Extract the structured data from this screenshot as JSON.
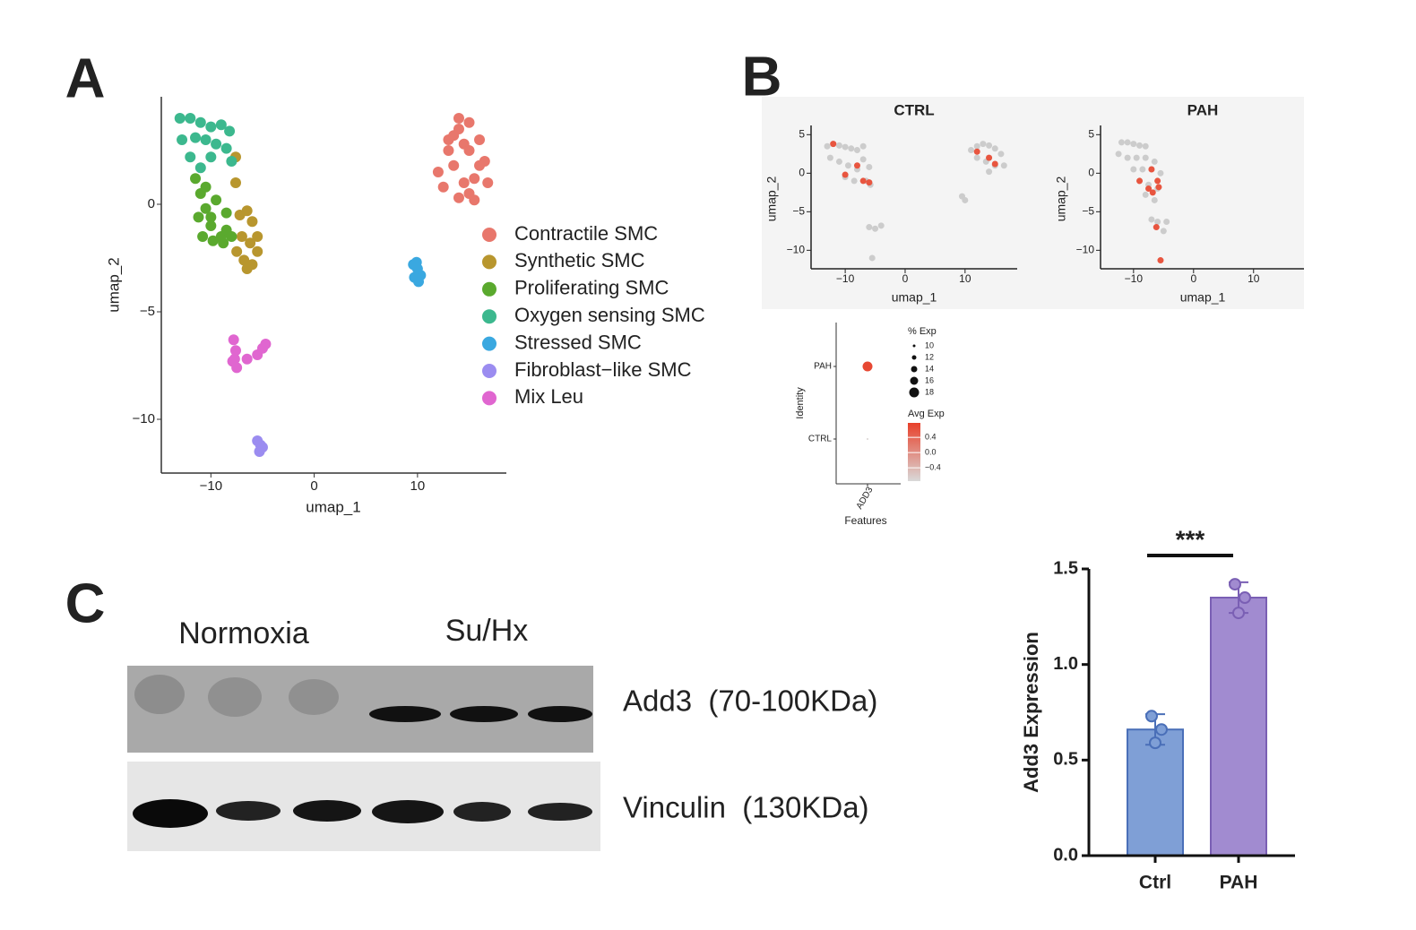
{
  "panel_labels": [
    "A",
    "B",
    "C"
  ],
  "chart_data": [
    {
      "type": "scatter",
      "xlabel": "umap_1",
      "ylabel": "umap_2",
      "xlim": [
        -14.8,
        18.6
      ],
      "ylim": [
        -12.5,
        5
      ],
      "xticks": [
        {
          "value": -10,
          "label": "−10"
        },
        0,
        10
      ],
      "yticks": [
        0,
        {
          "value": -5,
          "label": "−5"
        },
        {
          "value": -10,
          "label": "−10"
        }
      ],
      "legend": "right",
      "series": [
        {
          "name": "Contractile SMC",
          "color": "#e8776c",
          "x": [
            12,
            13,
            14,
            15,
            16,
            12.5,
            13.5,
            14.5,
            15.5,
            16.5,
            13,
            14,
            15,
            16,
            14,
            15,
            14.5,
            13.5,
            15.5,
            16.8
          ],
          "y": [
            1.5,
            2.5,
            3.5,
            3.8,
            3,
            0.8,
            1.8,
            2.8,
            1.2,
            2,
            3,
            0.3,
            0.5,
            1.8,
            4,
            2.5,
            1,
            3.2,
            0.2,
            1
          ]
        },
        {
          "name": "Synthetic SMC",
          "color": "#b8962e",
          "x": [
            -7.2,
            -6.5,
            -6,
            -5.5,
            -7,
            -6.2,
            -5.5,
            -6.8,
            -6,
            -7.5,
            -6.5,
            -7.6,
            -7.6
          ],
          "y": [
            -0.5,
            -0.3,
            -0.8,
            -1.5,
            -1.5,
            -1.8,
            -2.2,
            -2.6,
            -2.8,
            -2.2,
            -3,
            1,
            2.2
          ]
        },
        {
          "name": "Proliferating SMC",
          "color": "#5aa92e",
          "x": [
            -11.5,
            -11,
            -10.5,
            -10,
            -9,
            -8.5,
            -11.2,
            -10.5,
            -9.5,
            -8.5,
            -10.8,
            -9.8,
            -8.8,
            -10,
            -8
          ],
          "y": [
            1.2,
            0.5,
            -0.2,
            -1,
            -1.5,
            -1.2,
            -0.6,
            0.8,
            0.2,
            -0.4,
            -1.5,
            -1.7,
            -1.8,
            -0.6,
            -1.5
          ]
        },
        {
          "name": "Oxygen sensing SMC",
          "color": "#3cb88e",
          "x": [
            -13,
            -12,
            -11,
            -10,
            -9,
            -8.2,
            -12.8,
            -11.5,
            -10.5,
            -9.5,
            -8.5,
            -12,
            -10,
            -8,
            -11
          ],
          "y": [
            4,
            4,
            3.8,
            3.6,
            3.7,
            3.4,
            3,
            3.1,
            3,
            2.8,
            2.6,
            2.2,
            2.2,
            2,
            1.7
          ]
        },
        {
          "name": "Stressed SMC",
          "color": "#3aa8e0",
          "x": [
            9.6,
            10,
            10.3,
            9.7,
            10.1,
            9.9
          ],
          "y": [
            -2.8,
            -3,
            -3.3,
            -3.4,
            -3.6,
            -2.7
          ]
        },
        {
          "name": "Fibroblast−like SMC",
          "color": "#9b8cf0",
          "x": [
            -5.5,
            -5.2,
            -5.3,
            -5
          ],
          "y": [
            -11,
            -11.2,
            -11.5,
            -11.3
          ]
        },
        {
          "name": "Mix Leu",
          "color": "#e066d0",
          "x": [
            -7.8,
            -7.6,
            -7.9,
            -7.5,
            -6.5,
            -5.5,
            -5,
            -4.7,
            -7.7
          ],
          "y": [
            -6.3,
            -6.8,
            -7.3,
            -7.6,
            -7.2,
            -7,
            -6.7,
            -6.5,
            -7.2
          ]
        }
      ]
    },
    {
      "type": "scatter",
      "title": "CTRL",
      "xlabel": "umap_1",
      "ylabel": "umap_2",
      "xlim": [
        -15.7,
        18.7
      ],
      "ylim": [
        -12.4,
        6.2
      ],
      "xticks": [
        {
          "value": -10,
          "label": "−10"
        },
        0,
        10
      ],
      "yticks": [
        5,
        0,
        {
          "value": -5,
          "label": "−5"
        },
        {
          "value": -10,
          "label": "−10"
        }
      ],
      "series": [
        {
          "color": "#cccccc",
          "x": [
            -13,
            -12,
            -11,
            -10,
            -9,
            -8,
            -7,
            -12.5,
            -11,
            -9.5,
            -8,
            -7,
            -6,
            -10,
            -8.5,
            -6.5,
            -5.8,
            11,
            12,
            13,
            14,
            15,
            16,
            12,
            13.5,
            15,
            16.5,
            14,
            9.5,
            10,
            -6,
            -5,
            -4,
            -5.5
          ],
          "y": [
            3.5,
            3.8,
            3.6,
            3.4,
            3.2,
            3,
            3.5,
            2,
            1.5,
            1,
            0.5,
            1.8,
            0.8,
            -0.5,
            -1,
            -1,
            -1.5,
            3,
            3.5,
            3.8,
            3.6,
            3.2,
            2.5,
            2,
            1.5,
            1,
            1,
            0.2,
            -3,
            -3.5,
            -7,
            -7.2,
            -6.8,
            -11
          ]
        },
        {
          "color": "#e8553f",
          "x": [
            -12,
            -8,
            -7,
            -10,
            -6,
            12,
            14,
            15
          ],
          "y": [
            3.8,
            1,
            -1,
            -0.2,
            -1.2,
            2.8,
            2,
            1.2
          ]
        }
      ]
    },
    {
      "type": "scatter",
      "title": "PAH",
      "xlabel": "umap_1",
      "ylabel": "umap_2",
      "xlim": [
        -15.5,
        18.4
      ],
      "ylim": [
        -12.4,
        6.2
      ],
      "xticks": [
        {
          "value": -10,
          "label": "−10"
        },
        0,
        10
      ],
      "yticks": [
        5,
        0,
        {
          "value": -5,
          "label": "−5"
        },
        {
          "value": -10,
          "label": "−10"
        }
      ],
      "series": [
        {
          "color": "#cccccc",
          "x": [
            -12,
            -11,
            -10,
            -9,
            -8,
            -12.5,
            -11,
            -9.5,
            -8,
            -6.5,
            -10,
            -8.5,
            -7,
            -5.5,
            -9,
            -7.5,
            -6,
            -8,
            -6.5,
            -7,
            -6,
            -4.5,
            -5
          ],
          "y": [
            4,
            4,
            3.8,
            3.6,
            3.5,
            2.5,
            2,
            2,
            2,
            1.5,
            0.5,
            0.5,
            0.5,
            0,
            -1,
            -1.5,
            -2,
            -2.8,
            -3.5,
            -6,
            -6.3,
            -6.3,
            -7.5
          ]
        },
        {
          "color": "#e8553f",
          "x": [
            -9,
            -7,
            -6,
            -7.5,
            -6.8,
            -5.8,
            -6.2,
            -5.5
          ],
          "y": [
            -1,
            0.5,
            -1,
            -2,
            -2.5,
            -1.8,
            -7,
            -11.3
          ]
        }
      ]
    },
    {
      "type": "dot",
      "xlabel": "Features",
      "ylabel": "Identity",
      "categories": [
        "ADD3"
      ],
      "identities": [
        "CTRL",
        "PAH"
      ],
      "pct_exp": [
        9,
        18
      ],
      "avg_exp": [
        -0.7,
        0.7
      ],
      "size_title": "% Exp",
      "size_ticks": [
        10,
        12,
        14,
        16,
        18
      ],
      "color_title": "Avg Exp",
      "clim": [
        -0.75,
        0.78
      ],
      "colors": [
        "#d9d9d9",
        "#e8402a"
      ],
      "color_ticks": [
        0.4,
        {
          "value": 0,
          "label": "0.0"
        },
        {
          "value": -0.4,
          "label": "−0.4"
        }
      ]
    },
    {
      "type": "bar",
      "ylabel": "Add3 Expression",
      "categories": [
        "Ctrl",
        "PAH"
      ],
      "values": [
        0.66,
        1.35
      ],
      "errors": [
        0.08,
        0.08
      ],
      "points": [
        [
          0.73,
          0.66,
          0.59
        ],
        [
          1.42,
          1.35,
          1.27
        ]
      ],
      "colors": [
        "#7f9fd6",
        "#a18bd0"
      ],
      "edge_colors": [
        "#4a6fb8",
        "#7a5fb4"
      ],
      "ylim": [
        0,
        1.5
      ],
      "yticks": [
        {
          "value": 0,
          "label": "0.0"
        },
        0.5,
        {
          "value": 1,
          "label": "1.0"
        },
        1.5
      ],
      "annotation": "***"
    }
  ],
  "blot": {
    "conditions": [
      "Normoxia",
      "Su/Hx"
    ],
    "proteins": [
      "Add3  (70-100KDa)",
      "Vinculin  (130KDa)"
    ]
  }
}
